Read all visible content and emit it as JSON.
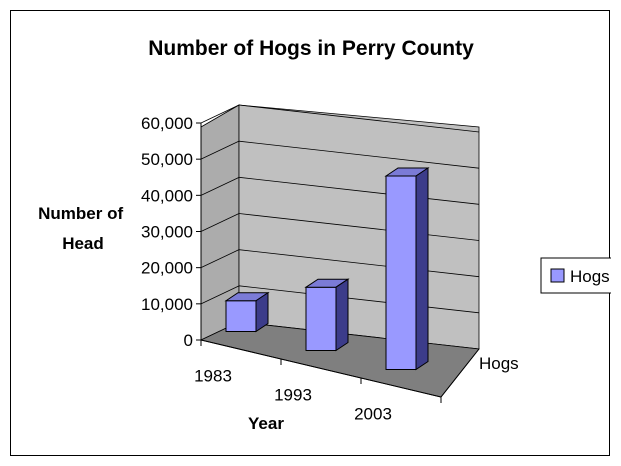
{
  "chart_data": {
    "type": "bar",
    "title": "Number of Hogs in Perry County",
    "xlabel": "Year",
    "ylabel": [
      "Number of",
      "Head"
    ],
    "depth_axis_label": "Hogs",
    "categories": [
      "1983",
      "1993",
      "2003"
    ],
    "series": [
      {
        "name": "Hogs",
        "values": [
          8500,
          17500,
          53500
        ]
      }
    ],
    "y_ticks": [
      "0",
      "10,000",
      "20,000",
      "30,000",
      "40,000",
      "50,000",
      "60,000"
    ],
    "ylim": [
      0,
      60000
    ],
    "grid": true,
    "three_d": true,
    "legend": {
      "position": "right",
      "label": "Hogs"
    },
    "colors": {
      "bar_front": "#9999ff",
      "bar_top": "#7b7bd6",
      "bar_side": "#3c3c8a",
      "back_wall": "#c0c0c0",
      "side_wall": "#acacac",
      "floor": "#7f7f7f",
      "grid": "#000000"
    }
  }
}
